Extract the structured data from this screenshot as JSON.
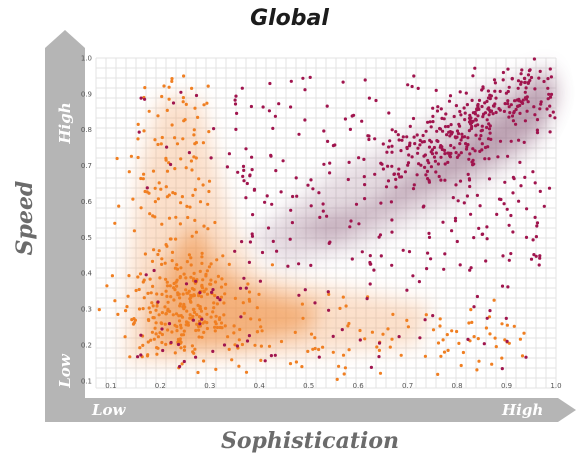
{
  "chart_data": {
    "type": "scatter",
    "title": "Global",
    "xlabel": "Sophistication",
    "ylabel": "Speed",
    "x_low_label": "Low",
    "x_high_label": "High",
    "y_low_label": "Low",
    "y_high_label": "High",
    "xlim": [
      0.07,
      1.0
    ],
    "ylim": [
      0.08,
      1.0
    ],
    "xticks": [
      "0.1",
      "0.2",
      "0.3",
      "0.4",
      "0.5",
      "0.6",
      "0.7",
      "0.8",
      "0.9",
      "1.0"
    ],
    "yticks": [
      "0.1",
      "0.2",
      "0.3",
      "0.4",
      "0.5",
      "0.6",
      "0.7",
      "0.8",
      "0.9",
      "1.0"
    ],
    "grid": true,
    "legend": "none",
    "series": [
      {
        "color": "#f07f22",
        "density_color": "#f4a56a"
      },
      {
        "color": "#a0154e",
        "density_color": "#8a5a78"
      }
    ]
  }
}
